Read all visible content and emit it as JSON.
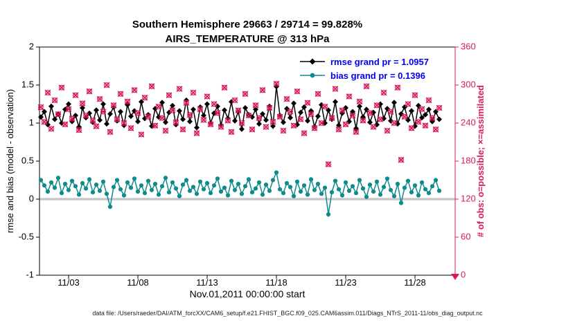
{
  "footer": {
    "datafile": "data file: /Users/raeder/DAI/ATM_forcXX/CAM6_setup/f.e21.FHIST_BGC.f09_025.CAM6assim.011/Diags_NTrS_2011-11/obs_diag_output.nc"
  },
  "colors": {
    "rmse": "#000000",
    "bias": "#0e8b8b",
    "obs": "#d81b60",
    "legend_text": "#0000ee",
    "zero_line": "#c8c8c8",
    "axis_right": "#d81b60"
  },
  "chart_data": {
    "type": "line",
    "title": "Southern Hemisphere 29663 / 29714 = 99.828%",
    "subtitle": "AIRS_TEMPERATURE @ 313 hPa",
    "counts": {
      "assimilated": 29663,
      "possible": 29714,
      "percent": "99.828%"
    },
    "xlabel": "Nov.01,2011 00:00:00 start",
    "ylabel_left": "rmse and bias (model - observation)",
    "ylabel_right": "# of obs: o=possible; ×=assimilated",
    "ylim_left": [
      -1,
      2
    ],
    "ylim_right": [
      0,
      360
    ],
    "yticks_left": [
      -1,
      -0.5,
      0,
      0.5,
      1,
      1.5,
      2
    ],
    "ytick_labels_left": [
      "-1",
      "-0.5",
      "0",
      "0.5",
      "1",
      "1.5",
      "2"
    ],
    "yticks_right": [
      0,
      60,
      120,
      180,
      240,
      300,
      360
    ],
    "ytick_labels_right": [
      "0",
      "60",
      "120",
      "180",
      "240",
      "300",
      "360"
    ],
    "xlim_days": [
      0.9,
      30.9
    ],
    "xticks_days": [
      3,
      8,
      13,
      18,
      23,
      28
    ],
    "xtick_labels": [
      "11/03",
      "11/08",
      "11/13",
      "11/18",
      "11/23",
      "11/28"
    ],
    "x_start_day": 1.0,
    "x_step_days": 0.25,
    "grand_means": {
      "rmse": 1.0957,
      "bias": 0.1396
    },
    "zero_line": {
      "value": 0,
      "width": 3.5
    },
    "series": [
      {
        "name": "rmse",
        "legend": "rmse grand pr = 1.0957",
        "color": "#000000",
        "axis": "left",
        "marker": "diamond",
        "line": true,
        "values": [
          1.08,
          1.15,
          0.98,
          1.22,
          1.05,
          1.12,
          1.0,
          1.18,
          1.25,
          1.02,
          1.1,
          0.95,
          1.2,
          1.07,
          1.13,
          1.01,
          1.17,
          1.04,
          1.25,
          0.99,
          1.12,
          1.21,
          1.03,
          1.15,
          0.97,
          1.24,
          1.09,
          1.16,
          1.02,
          1.28,
          1.06,
          1.11,
          0.96,
          1.19,
          1.08,
          1.27,
          1.01,
          1.14,
          1.23,
          0.98,
          1.16,
          1.05,
          1.3,
          1.02,
          1.18,
          0.94,
          1.21,
          1.1,
          1.25,
          1.0,
          1.13,
          1.22,
          0.97,
          1.17,
          1.06,
          1.28,
          1.03,
          1.15,
          0.92,
          1.2,
          1.11,
          1.08,
          1.18,
          0.99,
          1.12,
          1.04,
          1.22,
          0.96,
          1.48,
          1.1,
          1.01,
          1.19,
          1.07,
          1.26,
          0.98,
          1.14,
          1.21,
          1.03,
          1.16,
          0.95,
          1.09,
          1.24,
          1.0,
          1.17,
          1.05,
          1.28,
          0.97,
          1.13,
          1.2,
          1.02,
          1.15,
          0.93,
          1.22,
          1.08,
          1.18,
          1.01,
          1.14,
          0.98,
          1.25,
          1.06,
          1.19,
          1.03,
          1.27,
          0.99,
          1.12,
          1.21,
          1.04,
          1.16,
          0.96,
          1.23,
          1.07,
          1.11,
          1.18,
          1.02,
          1.15,
          1.05
        ]
      },
      {
        "name": "bias",
        "legend": "bias grand pr = 0.1396",
        "color": "#0e8b8b",
        "axis": "left",
        "marker": "circle",
        "line": true,
        "values": [
          0.25,
          0.18,
          0.1,
          0.22,
          0.15,
          0.28,
          0.08,
          0.2,
          0.12,
          0.24,
          0.17,
          0.06,
          0.21,
          0.14,
          0.26,
          0.09,
          0.19,
          0.11,
          0.23,
          0.07,
          -0.1,
          0.16,
          0.25,
          0.13,
          0.05,
          0.22,
          0.15,
          0.27,
          0.1,
          0.18,
          0.08,
          0.24,
          0.12,
          0.2,
          0.06,
          0.17,
          0.28,
          0.09,
          0.22,
          0.14,
          0.04,
          0.19,
          0.25,
          0.11,
          0.16,
          0.07,
          0.23,
          0.13,
          0.21,
          0.08,
          0.18,
          0.27,
          0.1,
          0.15,
          0.05,
          0.24,
          0.12,
          0.2,
          0.07,
          0.17,
          0.26,
          0.09,
          0.14,
          0.22,
          0.06,
          0.19,
          0.11,
          0.25,
          0.35,
          0.13,
          0.08,
          0.21,
          0.16,
          0.04,
          0.23,
          0.1,
          0.18,
          0.06,
          0.26,
          0.12,
          0.2,
          0.07,
          0.15,
          -0.2,
          0.09,
          0.24,
          0.13,
          0.05,
          0.22,
          0.11,
          0.17,
          0.08,
          0.25,
          0.14,
          0.03,
          0.19,
          0.1,
          0.23,
          0.06,
          0.16,
          0.27,
          0.12,
          0.04,
          0.2,
          -0.05,
          0.15,
          0.24,
          0.09,
          0.18,
          0.05,
          0.22,
          0.13,
          0.08,
          0.17,
          0.25,
          0.11
        ]
      },
      {
        "name": "obs_possible",
        "legend": "o=possible",
        "color": "#d81b60",
        "axis": "right",
        "marker": "open-circle",
        "line": false,
        "values": [
          265,
          242,
          288,
          231,
          276,
          254,
          296,
          238,
          262,
          247,
          284,
          229,
          271,
          252,
          290,
          244,
          235,
          278,
          258,
          300,
          226,
          268,
          246,
          286,
          240,
          274,
          232,
          292,
          256,
          222,
          280,
          250,
          298,
          236,
          266,
          248,
          228,
          284,
          260,
          241,
          294,
          230,
          272,
          253,
          288,
          224,
          262,
          245,
          282,
          238,
          270,
          256,
          234,
          296,
          244,
          226,
          276,
          260,
          240,
          286,
          252,
          230,
          268,
          248,
          292,
          234,
          264,
          242,
          302,
          250,
          228,
          278,
          258,
          236,
          290,
          246,
          224,
          272,
          254,
          232,
          286,
          240,
          266,
          175,
          248,
          294,
          230,
          260,
          238,
          282,
          252,
          226,
          274,
          244,
          298,
          256,
          234,
          268,
          246,
          288,
          228,
          258,
          240,
          296,
          182,
          250,
          270,
          232,
          284,
          242,
          262,
          236,
          276,
          248,
          230,
          264
        ]
      },
      {
        "name": "obs_assimilated",
        "legend": "×=assimilated",
        "color": "#d81b60",
        "axis": "right",
        "marker": "x",
        "line": false,
        "values_from": "obs_possible"
      }
    ]
  }
}
